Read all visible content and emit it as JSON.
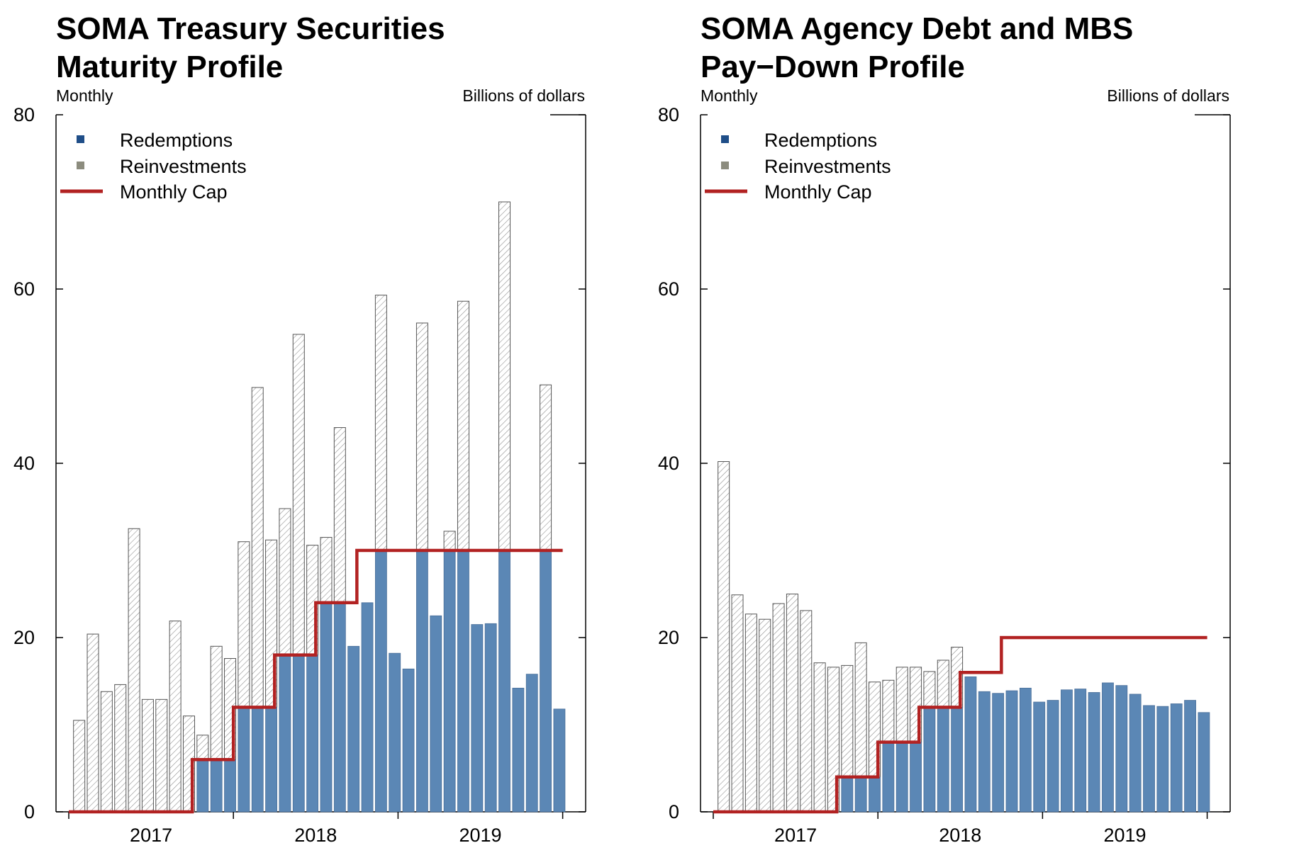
{
  "colors": {
    "redemptions": "#5b87b5",
    "redemptions_legend": "#1f4e88",
    "reinvestments_legend": "#8c8c7e",
    "cap": "#b22222",
    "hatch": "#8a8a8a"
  },
  "chart_data": [
    {
      "type": "bar",
      "stacked": true,
      "title_lines": [
        "SOMA Treasury Securities",
        "Maturity Profile"
      ],
      "subtitle_left": "Monthly",
      "subtitle_right": "Billions of dollars",
      "ylim": [
        0,
        80
      ],
      "yticks": [
        0,
        20,
        40,
        60,
        80
      ],
      "xtick_labels": [
        "2017",
        "2018",
        "2019"
      ],
      "x_start": "2017-01",
      "legend": {
        "redemptions": "Redemptions",
        "reinvestments": "Reinvestments",
        "cap": "Monthly Cap"
      },
      "redemptions": [
        0,
        0,
        0,
        0,
        0,
        0,
        0,
        0,
        0,
        6,
        6,
        6,
        12,
        12,
        12,
        18,
        18,
        18,
        24,
        24,
        19,
        24,
        30,
        18.2,
        16.4,
        30,
        22.5,
        30,
        30,
        21.5,
        21.6,
        30,
        14.2,
        15.8,
        30,
        11.8
      ],
      "totals": [
        10.5,
        20.4,
        13.8,
        14.6,
        32.5,
        12.9,
        12.9,
        21.9,
        11,
        8.8,
        19,
        17.6,
        31,
        48.7,
        31.2,
        34.8,
        54.8,
        30.6,
        31.5,
        44.1,
        19,
        24,
        59.3,
        18.2,
        16.4,
        56.1,
        22.5,
        32.2,
        58.6,
        21.5,
        21.6,
        70,
        14.2,
        15.8,
        49,
        11.8
      ],
      "cap": [
        0,
        0,
        0,
        0,
        0,
        0,
        0,
        0,
        0,
        6,
        6,
        6,
        12,
        12,
        12,
        18,
        18,
        18,
        24,
        24,
        24,
        30,
        30,
        30,
        30,
        30,
        30,
        30,
        30,
        30,
        30,
        30,
        30,
        30,
        30,
        30
      ]
    },
    {
      "type": "bar",
      "stacked": true,
      "title_lines": [
        "SOMA Agency Debt and MBS",
        "Pay−Down Profile"
      ],
      "subtitle_left": "Monthly",
      "subtitle_right": "Billions of dollars",
      "ylim": [
        0,
        80
      ],
      "yticks": [
        0,
        20,
        40,
        60,
        80
      ],
      "xtick_labels": [
        "2017",
        "2018",
        "2019"
      ],
      "x_start": "2017-01",
      "legend": {
        "redemptions": "Redemptions",
        "reinvestments": "Reinvestments",
        "cap": "Monthly Cap"
      },
      "redemptions": [
        0,
        0,
        0,
        0,
        0,
        0,
        0,
        0,
        0,
        4,
        4,
        4,
        8,
        8,
        8,
        12,
        12,
        12,
        15.5,
        13.8,
        13.6,
        13.9,
        14.2,
        12.6,
        12.8,
        14,
        14.1,
        13.7,
        14.8,
        14.5,
        13.5,
        12.2,
        12.1,
        12.4,
        12.8,
        11.4
      ],
      "totals": [
        40.2,
        24.9,
        22.7,
        22.1,
        23.9,
        25,
        23.1,
        17.1,
        16.6,
        16.8,
        19.4,
        14.9,
        15.1,
        16.6,
        16.6,
        16.1,
        17.4,
        18.9,
        15.5,
        13.8,
        13.6,
        13.9,
        14.2,
        12.6,
        12.8,
        14,
        14.1,
        13.7,
        14.8,
        14.5,
        13.5,
        12.2,
        12.1,
        12.4,
        12.8,
        11.4
      ],
      "cap": [
        0,
        0,
        0,
        0,
        0,
        0,
        0,
        0,
        0,
        4,
        4,
        4,
        8,
        8,
        8,
        12,
        12,
        12,
        16,
        16,
        16,
        20,
        20,
        20,
        20,
        20,
        20,
        20,
        20,
        20,
        20,
        20,
        20,
        20,
        20,
        20
      ]
    }
  ]
}
